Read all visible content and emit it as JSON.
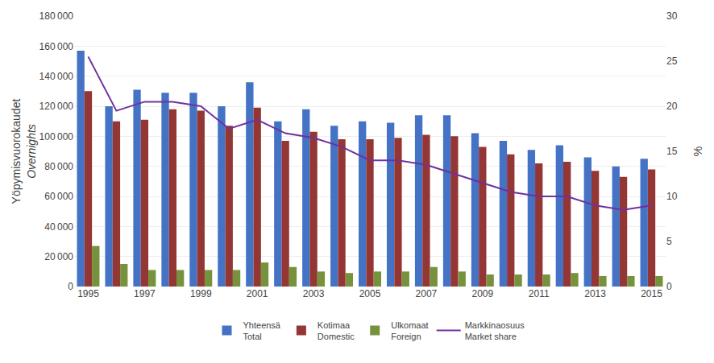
{
  "chart_data": {
    "type": "bar",
    "ylabel": "Yöpymisvuorokaudet\nOvernights",
    "y2label": "%",
    "categories": [
      "1995",
      null,
      "1997",
      null,
      "1999",
      null,
      "2001",
      null,
      "2003",
      null,
      "2005",
      null,
      "2007",
      null,
      "2009",
      null,
      "2011",
      null,
      "2013",
      null,
      "2015"
    ],
    "series": [
      {
        "name": "Yhteensä\nTotal",
        "type": "bar",
        "color": "#4472C4",
        "values": [
          157000,
          120000,
          131000,
          129000,
          129000,
          120000,
          136000,
          110000,
          118000,
          107000,
          110000,
          109000,
          114000,
          114000,
          102000,
          97000,
          91000,
          94000,
          86000,
          80000,
          85000
        ]
      },
      {
        "name": "Kotimaa\nDomestic",
        "type": "bar",
        "color": "#943634",
        "values": [
          130000,
          110000,
          111000,
          118000,
          117000,
          107000,
          119000,
          97000,
          103000,
          98000,
          98000,
          99000,
          101000,
          100000,
          93000,
          88000,
          82000,
          83000,
          77000,
          73000,
          78000
        ]
      },
      {
        "name": "Ulkomaat\nForeign",
        "type": "bar",
        "color": "#76923C",
        "values": [
          27000,
          15000,
          11000,
          11000,
          11000,
          11000,
          16000,
          13000,
          10000,
          9000,
          10000,
          10000,
          13000,
          10000,
          8000,
          8000,
          8000,
          9000,
          7000,
          7000,
          7000
        ]
      },
      {
        "name": "Markkinaosuus\nMarket share",
        "type": "line",
        "axis": "y2",
        "color": "#7030A0",
        "values": [
          25.5,
          19.5,
          20.5,
          20.5,
          20.0,
          17.5,
          18.5,
          17.0,
          16.5,
          15.5,
          14.0,
          14.0,
          13.5,
          12.5,
          11.5,
          10.5,
          10.0,
          10.0,
          9.0,
          8.5,
          9.0
        ]
      }
    ],
    "ylim": [
      0,
      180000
    ],
    "yticks": [
      0,
      {
        "value": 20000,
        "label": "20 000"
      },
      {
        "value": 40000,
        "label": "40 000"
      },
      {
        "value": 60000,
        "label": "60 000"
      },
      {
        "value": 80000,
        "label": "80 000"
      },
      {
        "value": 100000,
        "label": "100 000"
      },
      {
        "value": 120000,
        "label": "120 000"
      },
      {
        "value": 140000,
        "label": "140 000"
      },
      {
        "value": 160000,
        "label": "160 000"
      },
      {
        "value": 180000,
        "label": "180 000"
      }
    ],
    "y2lim": [
      0,
      30
    ],
    "y2ticks": [
      0,
      5,
      10,
      15,
      20,
      25,
      30
    ],
    "grid": true,
    "legend": "bottom"
  }
}
